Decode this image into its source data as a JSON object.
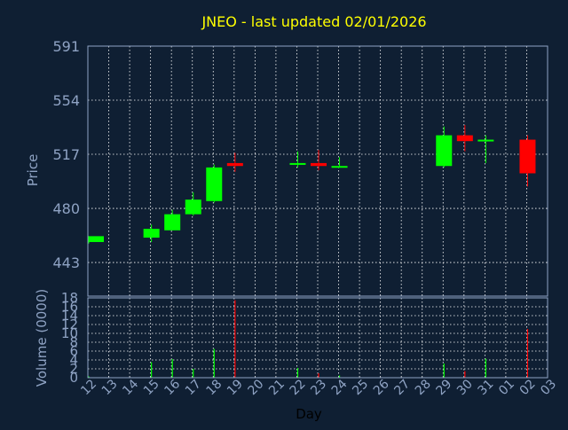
{
  "chart_data": [
    {
      "type": "candlestick",
      "title": "JNEO - last updated 02/01/2026",
      "ylabel": "Price",
      "ylim": [
        420,
        591
      ],
      "yticks": [
        443,
        480,
        517,
        554,
        591
      ],
      "grid": true,
      "colors": {
        "background": "#0f1f33",
        "up": "#00ff00",
        "down": "#ff0000",
        "title": "#ffff00",
        "axis_text": "#8fa3c4",
        "grid": "#ffffff"
      },
      "x_ticks": [
        "12",
        "13",
        "14",
        "15",
        "16",
        "17",
        "18",
        "19",
        "20",
        "21",
        "22",
        "23",
        "24",
        "25",
        "26",
        "27",
        "28",
        "29",
        "30",
        "31",
        "01",
        "02",
        "03"
      ],
      "candles": [
        {
          "day": "12",
          "open": 457,
          "high": 461,
          "low": 456,
          "close": 461
        },
        {
          "day": "15",
          "open": 460,
          "high": 469,
          "low": 457,
          "close": 466
        },
        {
          "day": "16",
          "open": 465,
          "high": 479,
          "low": 465,
          "close": 476
        },
        {
          "day": "17",
          "open": 476,
          "high": 491,
          "low": 475,
          "close": 486
        },
        {
          "day": "18",
          "open": 485,
          "high": 510,
          "low": 484,
          "close": 508
        },
        {
          "day": "19",
          "open": 511,
          "high": 518,
          "low": 505,
          "close": 509
        },
        {
          "day": "22",
          "open": 510,
          "high": 519,
          "low": 508,
          "close": 511
        },
        {
          "day": "23",
          "open": 511,
          "high": 520,
          "low": 506,
          "close": 509
        },
        {
          "day": "24",
          "open": 508,
          "high": 515,
          "low": 508,
          "close": 509
        },
        {
          "day": "29",
          "open": 509,
          "high": 536,
          "low": 508,
          "close": 530
        },
        {
          "day": "30",
          "open": 530,
          "high": 537,
          "low": 519,
          "close": 526
        },
        {
          "day": "31",
          "open": 526,
          "high": 530,
          "low": 511,
          "close": 527
        },
        {
          "day": "02",
          "open": 527,
          "high": 530,
          "low": 495,
          "close": 504
        }
      ]
    },
    {
      "type": "bar",
      "ylabel": "Volume (0000)",
      "xlabel": "Day",
      "ylim": [
        0,
        18
      ],
      "yticks": [
        0,
        2,
        4,
        6,
        8,
        10,
        12,
        14,
        16,
        18
      ],
      "x_ticks": [
        "12",
        "13",
        "14",
        "15",
        "16",
        "17",
        "18",
        "19",
        "20",
        "21",
        "22",
        "23",
        "24",
        "25",
        "26",
        "27",
        "28",
        "29",
        "30",
        "31",
        "01",
        "02",
        "03"
      ],
      "bars": [
        {
          "day": "12",
          "value": 0.3,
          "color": "green"
        },
        {
          "day": "15",
          "value": 3.5,
          "color": "green"
        },
        {
          "day": "16",
          "value": 4.2,
          "color": "green"
        },
        {
          "day": "17",
          "value": 2.0,
          "color": "green"
        },
        {
          "day": "18",
          "value": 6.5,
          "color": "green"
        },
        {
          "day": "19",
          "value": 17.5,
          "color": "red"
        },
        {
          "day": "22",
          "value": 2.2,
          "color": "green"
        },
        {
          "day": "23",
          "value": 1.0,
          "color": "red"
        },
        {
          "day": "24",
          "value": 0.5,
          "color": "green"
        },
        {
          "day": "29",
          "value": 3.2,
          "color": "green"
        },
        {
          "day": "30",
          "value": 1.5,
          "color": "red"
        },
        {
          "day": "31",
          "value": 4.3,
          "color": "green"
        },
        {
          "day": "02",
          "value": 11.0,
          "color": "red"
        }
      ]
    }
  ]
}
